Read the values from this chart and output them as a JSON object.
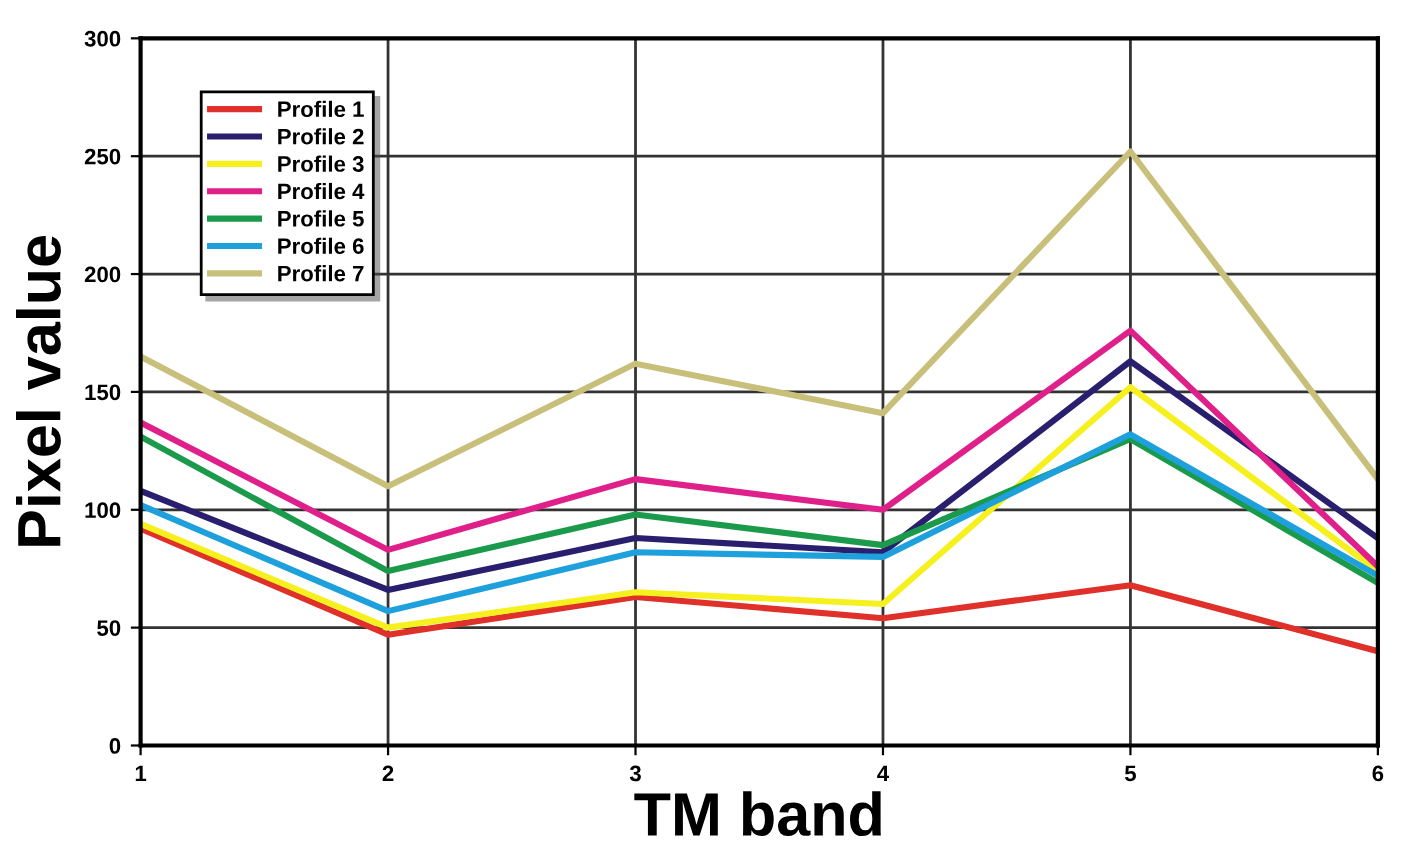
{
  "chart_data": {
    "type": "line",
    "xlabel": "TM band",
    "ylabel": "Pixel value",
    "x": [
      1,
      2,
      3,
      4,
      5,
      6
    ],
    "series": [
      {
        "name": "Profile 1",
        "color": "#e0302a",
        "values": [
          92,
          47,
          63,
          54,
          68,
          40
        ]
      },
      {
        "name": "Profile 2",
        "color": "#2a1f6e",
        "values": [
          108,
          66,
          88,
          82,
          163,
          88
        ]
      },
      {
        "name": "Profile 3",
        "color": "#f5f01e",
        "values": [
          94,
          50,
          65,
          60,
          152,
          74
        ]
      },
      {
        "name": "Profile 4",
        "color": "#e0208a",
        "values": [
          137,
          83,
          113,
          100,
          176,
          76
        ]
      },
      {
        "name": "Profile 5",
        "color": "#1a9a4a",
        "values": [
          131,
          74,
          98,
          85,
          130,
          69
        ]
      },
      {
        "name": "Profile 6",
        "color": "#1ea0dc",
        "values": [
          102,
          57,
          82,
          80,
          132,
          72
        ]
      },
      {
        "name": "Profile 7",
        "color": "#c8c07a",
        "values": [
          165,
          110,
          162,
          141,
          252,
          113
        ]
      }
    ],
    "xlim": [
      1,
      6
    ],
    "xticks": [
      1,
      2,
      3,
      4,
      5,
      6
    ],
    "ylim": [
      0,
      300
    ],
    "yticks": [
      0,
      50,
      100,
      150,
      200,
      250,
      300
    ],
    "grid": true,
    "legend": "top left",
    "marker": "none",
    "line_style": "solid"
  }
}
